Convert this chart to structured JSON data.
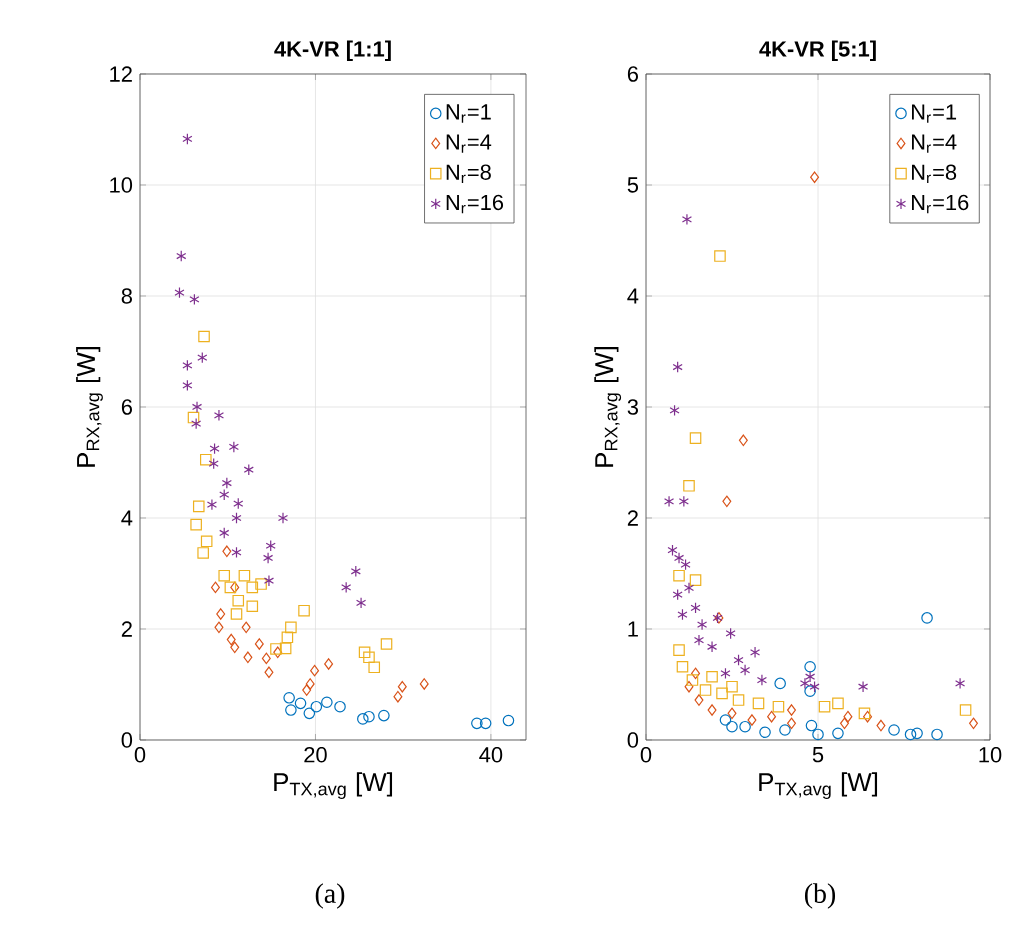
{
  "chart_data": [
    {
      "type": "scatter",
      "title": "4K-VR [1:1]",
      "xlabel": "P$_{TX,avg}$ [W]",
      "ylabel": "P$_{RX,avg}$ [W]",
      "xlim": [
        0,
        44
      ],
      "ylim": [
        0,
        12
      ],
      "xticks": [
        0,
        20,
        40
      ],
      "yticks": [
        0,
        2,
        4,
        6,
        8,
        10,
        12
      ],
      "grid": true,
      "legend": "top right",
      "annotations": [
        "(a)"
      ],
      "series": [
        {
          "name": "N$_{r}$=1",
          "color": "#0072bd",
          "marker": "circle",
          "x": [
            17.0,
            17.2,
            18.3,
            19.3,
            20.1,
            21.3,
            22.8,
            25.4,
            26.1,
            27.8,
            38.4,
            39.4,
            42.0
          ],
          "values": [
            0.76,
            0.54,
            0.66,
            0.48,
            0.6,
            0.68,
            0.6,
            0.38,
            0.42,
            0.44,
            0.3,
            0.3,
            0.35
          ]
        },
        {
          "name": "N$_{r}$=4",
          "color": "#d95319",
          "marker": "diamond",
          "x": [
            9.9,
            8.6,
            10.8,
            9.2,
            9.0,
            12.1,
            10.4,
            10.8,
            12.3,
            13.6,
            14.4,
            14.7,
            15.7,
            19.9,
            19.4,
            21.5,
            29.9,
            29.4,
            32.4,
            19.0
          ],
          "values": [
            3.4,
            2.75,
            2.75,
            2.27,
            2.03,
            2.03,
            1.81,
            1.67,
            1.49,
            1.73,
            1.47,
            1.22,
            1.58,
            1.25,
            1.01,
            1.37,
            0.96,
            0.78,
            1.01,
            0.9
          ]
        },
        {
          "name": "N$_{r}$=8",
          "color": "#edb120",
          "marker": "square",
          "x": [
            7.3,
            6.1,
            7.5,
            6.7,
            6.4,
            7.6,
            7.2,
            9.6,
            11.9,
            10.3,
            11.2,
            12.8,
            12.8,
            13.8,
            11.0,
            18.7,
            17.2,
            16.8,
            16.6,
            15.5,
            25.6,
            26.1,
            26.7,
            28.1
          ],
          "values": [
            7.27,
            5.81,
            5.05,
            4.21,
            3.88,
            3.58,
            3.37,
            2.96,
            2.96,
            2.75,
            2.51,
            2.75,
            2.41,
            2.81,
            2.27,
            2.33,
            2.03,
            1.85,
            1.65,
            1.64,
            1.58,
            1.49,
            1.31,
            1.73
          ]
        },
        {
          "name": "N$_{r}$=16",
          "color": "#7e2f8e",
          "marker": "cross",
          "x": [
            5.4,
            4.7,
            4.5,
            6.2,
            7.1,
            5.4,
            5.4,
            6.5,
            6.4,
            9.0,
            8.5,
            8.4,
            10.7,
            12.4,
            9.9,
            9.6,
            11.2,
            11.0,
            8.2,
            9.6,
            11.0,
            16.3,
            14.9,
            14.6,
            14.7,
            24.6,
            23.5,
            25.2
          ],
          "values": [
            10.83,
            8.72,
            8.06,
            7.94,
            6.89,
            6.75,
            6.39,
            6.0,
            5.7,
            5.85,
            5.25,
            4.98,
            5.28,
            4.87,
            4.63,
            4.42,
            4.26,
            4.0,
            4.24,
            3.73,
            3.38,
            4.0,
            3.5,
            3.28,
            2.87,
            3.04,
            2.75,
            2.47
          ]
        }
      ]
    },
    {
      "type": "scatter",
      "title": "4K-VR [5:1]",
      "xlabel": "P$_{TX,avg}$ [W]",
      "ylabel": "P$_{RX,avg}$ [W]",
      "xlim": [
        0,
        10
      ],
      "ylim": [
        0,
        6
      ],
      "xticks": [
        0,
        5,
        10
      ],
      "yticks": [
        0,
        1,
        2,
        3,
        4,
        5,
        6
      ],
      "grid": true,
      "legend": "top right",
      "annotations": [
        "(b)"
      ],
      "series": [
        {
          "name": "N$_{r}$=1",
          "color": "#0072bd",
          "marker": "circle",
          "x": [
            8.17,
            4.77,
            4.77,
            3.9,
            2.31,
            2.88,
            3.46,
            4.04,
            4.81,
            5.0,
            5.58,
            7.21,
            7.69,
            7.88,
            8.46,
            2.5
          ],
          "values": [
            1.1,
            0.66,
            0.44,
            0.51,
            0.18,
            0.12,
            0.07,
            0.09,
            0.13,
            0.05,
            0.06,
            0.09,
            0.05,
            0.06,
            0.05,
            0.12
          ]
        },
        {
          "name": "N$_{r}$=4",
          "color": "#d95319",
          "marker": "diamond",
          "x": [
            4.9,
            2.83,
            2.35,
            2.12,
            1.25,
            1.54,
            1.92,
            2.5,
            3.08,
            3.65,
            4.23,
            4.23,
            5.77,
            5.87,
            6.44,
            6.83,
            9.52,
            1.44
          ],
          "values": [
            5.07,
            2.7,
            2.15,
            1.1,
            0.48,
            0.36,
            0.27,
            0.24,
            0.18,
            0.21,
            0.27,
            0.15,
            0.15,
            0.21,
            0.21,
            0.13,
            0.15,
            0.6
          ]
        },
        {
          "name": "N$_{r}$=8",
          "color": "#edb120",
          "marker": "square",
          "x": [
            2.15,
            1.44,
            1.25,
            0.96,
            1.44,
            0.96,
            1.06,
            1.35,
            1.73,
            2.21,
            2.69,
            3.27,
            3.85,
            1.92,
            2.5,
            5.19,
            5.58,
            6.35,
            9.29
          ],
          "values": [
            4.36,
            2.72,
            2.29,
            1.48,
            1.44,
            0.81,
            0.66,
            0.54,
            0.45,
            0.42,
            0.36,
            0.33,
            0.3,
            0.57,
            0.48,
            0.3,
            0.33,
            0.24,
            0.27
          ]
        },
        {
          "name": "N$_{r}$=16",
          "color": "#7e2f8e",
          "marker": "cross",
          "x": [
            1.19,
            0.92,
            0.83,
            0.67,
            1.1,
            0.77,
            0.96,
            1.15,
            0.92,
            1.25,
            1.06,
            1.44,
            1.63,
            2.08,
            2.46,
            1.92,
            1.54,
            2.69,
            3.17,
            2.31,
            3.37,
            2.88,
            4.77,
            4.9,
            4.62,
            6.31,
            9.13
          ],
          "values": [
            4.69,
            3.36,
            2.97,
            2.15,
            2.15,
            1.71,
            1.64,
            1.58,
            1.31,
            1.37,
            1.13,
            1.19,
            1.04,
            1.1,
            0.96,
            0.84,
            0.9,
            0.72,
            0.79,
            0.6,
            0.54,
            0.63,
            0.57,
            0.48,
            0.51,
            0.48,
            0.51
          ]
        }
      ]
    }
  ]
}
